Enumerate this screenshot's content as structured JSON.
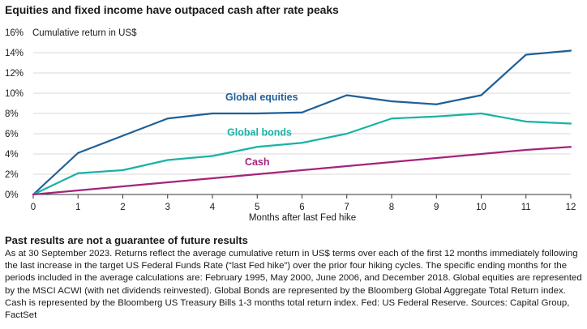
{
  "chart_data": {
    "type": "line",
    "title": "Equities and fixed income have outpaced cash after rate peaks",
    "ylabel": "Cumulative return in US$",
    "xlabel": "Months after last Fed hike",
    "x": [
      0,
      1,
      2,
      3,
      4,
      5,
      6,
      7,
      8,
      9,
      10,
      11,
      12
    ],
    "xlim": [
      0,
      12
    ],
    "ylim": [
      0,
      16
    ],
    "yticks": [
      0,
      2,
      4,
      6,
      8,
      10,
      12,
      14,
      16
    ],
    "ytick_labels": [
      "0%",
      "2%",
      "4%",
      "6%",
      "8%",
      "10%",
      "12%",
      "14%",
      "16%"
    ],
    "xtick_labels": [
      "0",
      "1",
      "2",
      "3",
      "4",
      "5",
      "6",
      "7",
      "8",
      "9",
      "10",
      "11",
      "12"
    ],
    "series": [
      {
        "name": "Global equities",
        "color": "#1f5f99",
        "label_at": {
          "x": 5.1,
          "y": 9.3
        },
        "values": [
          0,
          4.1,
          5.8,
          7.5,
          8.0,
          8.0,
          8.1,
          9.8,
          9.2,
          8.9,
          9.8,
          13.8,
          14.2
        ]
      },
      {
        "name": "Global bonds",
        "color": "#19b2a6",
        "label_at": {
          "x": 5.05,
          "y": 5.8
        },
        "values": [
          0,
          2.1,
          2.4,
          3.4,
          3.8,
          4.7,
          5.1,
          6.0,
          7.5,
          7.7,
          8.0,
          7.2,
          7.0
        ]
      },
      {
        "name": "Cash",
        "color": "#a3247c",
        "label_at": {
          "x": 5.0,
          "y": 2.9
        },
        "values": [
          0,
          0.4,
          0.8,
          1.2,
          1.6,
          2.0,
          2.4,
          2.8,
          3.2,
          3.6,
          4.0,
          4.4,
          4.7
        ]
      }
    ]
  },
  "disclaimer": {
    "heading": "Past results are not a guarantee of future results",
    "body": "As at 30 September 2023. Returns reflect the average cumulative return in US$ terms over each of the first 12 months immediately following the last increase in the target US Federal Funds Rate (“last Fed hike”) over the prior four hiking cycles. The specific ending months for the periods included in the average calculations are: February 1995, May 2000, June 2006, and December 2018. Global equities are represented by the MSCI ACWI (with net dividends reinvested). Global Bonds are represented by the Bloomberg Global Aggregate Total Return index. Cash is represented by the Bloomberg US Treasury Bills 1-3 months total return index. Fed: US Federal Reserve. Sources: Capital Group, FactSet"
  }
}
